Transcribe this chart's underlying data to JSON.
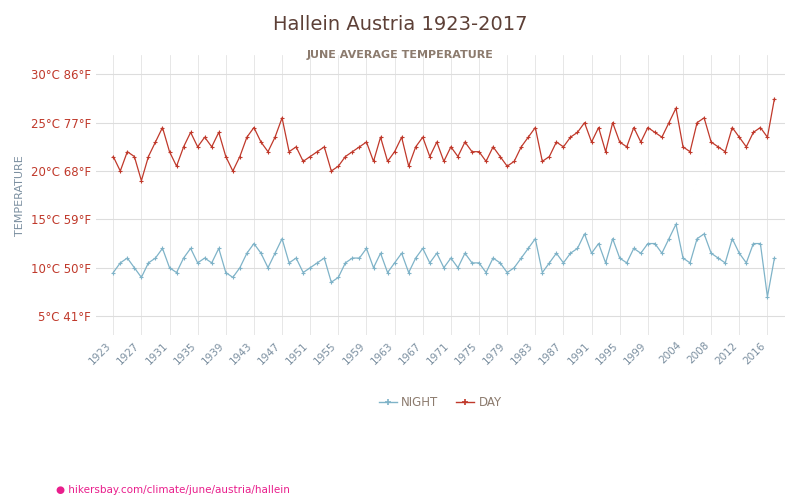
{
  "title": "Hallein Austria 1923-2017",
  "subtitle": "JUNE AVERAGE TEMPERATURE",
  "xlabel_url": "hikersbay.com/climate/june/austria/hallein",
  "ylabel": "TEMPERATURE",
  "years": [
    1923,
    1924,
    1925,
    1926,
    1927,
    1928,
    1929,
    1930,
    1931,
    1932,
    1933,
    1934,
    1935,
    1936,
    1937,
    1938,
    1939,
    1940,
    1941,
    1942,
    1943,
    1944,
    1945,
    1946,
    1947,
    1948,
    1949,
    1950,
    1951,
    1952,
    1953,
    1954,
    1955,
    1956,
    1957,
    1958,
    1959,
    1960,
    1961,
    1962,
    1963,
    1964,
    1965,
    1966,
    1967,
    1968,
    1969,
    1970,
    1971,
    1972,
    1973,
    1974,
    1975,
    1976,
    1977,
    1978,
    1979,
    1980,
    1981,
    1982,
    1983,
    1984,
    1985,
    1986,
    1987,
    1988,
    1989,
    1990,
    1991,
    1992,
    1993,
    1994,
    1995,
    1996,
    1997,
    1998,
    1999,
    2000,
    2001,
    2002,
    2003,
    2004,
    2005,
    2006,
    2007,
    2008,
    2009,
    2010,
    2011,
    2012,
    2013,
    2014,
    2015,
    2016,
    2017
  ],
  "day_temps": [
    21.5,
    20.0,
    22.0,
    21.5,
    19.0,
    21.5,
    23.0,
    24.5,
    22.0,
    20.5,
    22.5,
    24.0,
    22.5,
    23.5,
    22.5,
    24.0,
    21.5,
    20.0,
    21.5,
    23.5,
    24.5,
    23.0,
    22.0,
    23.5,
    25.5,
    22.0,
    22.5,
    21.0,
    21.5,
    22.0,
    22.5,
    20.0,
    20.5,
    21.5,
    22.0,
    22.5,
    23.0,
    21.0,
    23.5,
    21.0,
    22.0,
    23.5,
    20.5,
    22.5,
    23.5,
    21.5,
    23.0,
    21.0,
    22.5,
    21.5,
    23.0,
    22.0,
    22.0,
    21.0,
    22.5,
    21.5,
    20.5,
    21.0,
    22.5,
    23.5,
    24.5,
    21.0,
    21.5,
    23.0,
    22.5,
    23.5,
    24.0,
    25.0,
    23.0,
    24.5,
    22.0,
    25.0,
    23.0,
    22.5,
    24.5,
    23.0,
    24.5,
    24.0,
    23.5,
    25.0,
    26.5,
    22.5,
    22.0,
    25.0,
    25.5,
    23.0,
    22.5,
    22.0,
    24.5,
    23.5,
    22.5,
    24.0,
    24.5,
    23.5,
    27.5
  ],
  "night_temps": [
    9.5,
    10.5,
    11.0,
    10.0,
    9.0,
    10.5,
    11.0,
    12.0,
    10.0,
    9.5,
    11.0,
    12.0,
    10.5,
    11.0,
    10.5,
    12.0,
    9.5,
    9.0,
    10.0,
    11.5,
    12.5,
    11.5,
    10.0,
    11.5,
    13.0,
    10.5,
    11.0,
    9.5,
    10.0,
    10.5,
    11.0,
    8.5,
    9.0,
    10.5,
    11.0,
    11.0,
    12.0,
    10.0,
    11.5,
    9.5,
    10.5,
    11.5,
    9.5,
    11.0,
    12.0,
    10.5,
    11.5,
    10.0,
    11.0,
    10.0,
    11.5,
    10.5,
    10.5,
    9.5,
    11.0,
    10.5,
    9.5,
    10.0,
    11.0,
    12.0,
    13.0,
    9.5,
    10.5,
    11.5,
    10.5,
    11.5,
    12.0,
    13.5,
    11.5,
    12.5,
    10.5,
    13.0,
    11.0,
    10.5,
    12.0,
    11.5,
    12.5,
    12.5,
    11.5,
    13.0,
    14.5,
    11.0,
    10.5,
    13.0,
    13.5,
    11.5,
    11.0,
    10.5,
    13.0,
    11.5,
    10.5,
    12.5,
    12.5,
    7.0,
    11.0
  ],
  "yticks_c": [
    5,
    10,
    15,
    20,
    25,
    30
  ],
  "yticks_f": [
    41,
    50,
    59,
    68,
    77,
    86
  ],
  "xtick_years": [
    1923,
    1927,
    1931,
    1935,
    1939,
    1943,
    1947,
    1951,
    1955,
    1959,
    1963,
    1967,
    1971,
    1975,
    1979,
    1983,
    1987,
    1991,
    1995,
    1999,
    2004,
    2008,
    2012,
    2016
  ],
  "ylim": [
    3,
    32
  ],
  "xlim": [
    1920.5,
    2018.5
  ],
  "day_color": "#c0392b",
  "night_color": "#7fb3c8",
  "grid_color": "#dddddd",
  "title_color": "#5d4037",
  "subtitle_color": "#8c7b6e",
  "tick_label_color": "#c0392b",
  "ylabel_color": "#7b8fa0",
  "xtick_color": "#7b8fa0",
  "url_color": "#e91e8c",
  "background_color": "#ffffff"
}
